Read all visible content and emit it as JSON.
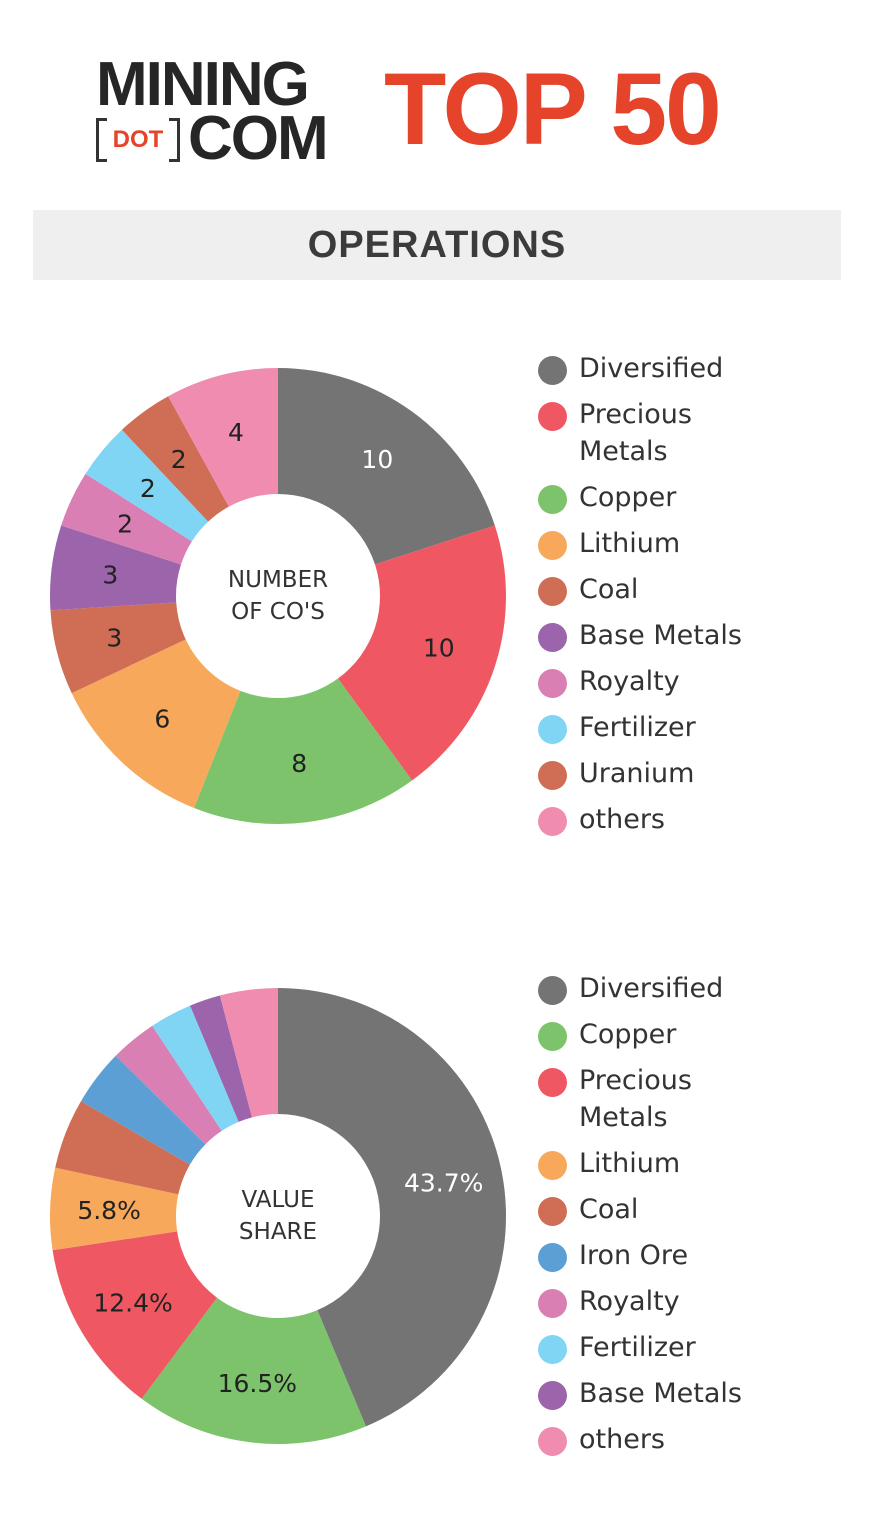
{
  "logo": {
    "line1": "MINING",
    "dot": "DOT",
    "line2": "COM"
  },
  "header": {
    "title": "TOP 50",
    "section": "OPERATIONS"
  },
  "chart_data": [
    {
      "type": "pie",
      "center_label": [
        "NUMBER",
        "OF CO'S"
      ],
      "categories": [
        "Diversified",
        "Precious Metals",
        "Copper",
        "Lithium",
        "Coal",
        "Base Metals",
        "Royalty",
        "Fertilizer",
        "Uranium",
        "others"
      ],
      "values": [
        10,
        10,
        8,
        6,
        3,
        3,
        2,
        2,
        2,
        4
      ],
      "labels": [
        "10",
        "10",
        "8",
        "6",
        "3",
        "3",
        "2",
        "2",
        "2",
        "4"
      ],
      "colors": [
        "#747474",
        "#ef5862",
        "#7cc36b",
        "#f8a85a",
        "#cf6d55",
        "#9b64ab",
        "#d97fb3",
        "#80d5f5",
        "#cf6d55",
        "#f18cb1"
      ],
      "legend": [
        {
          "label": "Diversified",
          "color": "#747474"
        },
        {
          "label": "Precious Metals",
          "color": "#ef5862"
        },
        {
          "label": "Copper",
          "color": "#7cc36b"
        },
        {
          "label": "Lithium",
          "color": "#f8a85a"
        },
        {
          "label": "Coal",
          "color": "#cf6d55"
        },
        {
          "label": "Base Metals",
          "color": "#9b64ab"
        },
        {
          "label": "Royalty",
          "color": "#d97fb3"
        },
        {
          "label": "Fertilizer",
          "color": "#80d5f5"
        },
        {
          "label": "Uranium",
          "color": "#cf6d55"
        },
        {
          "label": "others",
          "color": "#f18cb1"
        }
      ],
      "legend_position": "right"
    },
    {
      "type": "pie",
      "center_label": [
        "VALUE",
        "SHARE"
      ],
      "categories": [
        "Diversified",
        "Copper",
        "Precious Metals",
        "Lithium",
        "Coal",
        "Iron Ore",
        "Royalty",
        "Fertilizer",
        "Base Metals",
        "others"
      ],
      "values": [
        43.7,
        16.5,
        12.4,
        5.8,
        5.0,
        4.0,
        3.3,
        3.0,
        2.2,
        4.1
      ],
      "labels": [
        "43.7%",
        "16.5%",
        "12.4%",
        "5.8%",
        "",
        "",
        "",
        "",
        "",
        ""
      ],
      "colors": [
        "#747474",
        "#7cc36b",
        "#ef5862",
        "#f8a85a",
        "#cf6d55",
        "#5b9fd4",
        "#d97fb3",
        "#80d5f5",
        "#9b64ab",
        "#f18cb1"
      ],
      "legend": [
        {
          "label": "Diversified",
          "color": "#747474"
        },
        {
          "label": "Copper",
          "color": "#7cc36b"
        },
        {
          "label": "Precious Metals",
          "color": "#ef5862"
        },
        {
          "label": "Lithium",
          "color": "#f8a85a"
        },
        {
          "label": "Coal",
          "color": "#cf6d55"
        },
        {
          "label": "Iron Ore",
          "color": "#5b9fd4"
        },
        {
          "label": "Royalty",
          "color": "#d97fb3"
        },
        {
          "label": "Fertilizer",
          "color": "#80d5f5"
        },
        {
          "label": "Base Metals",
          "color": "#9b64ab"
        },
        {
          "label": "others",
          "color": "#f18cb1"
        }
      ],
      "legend_position": "right"
    }
  ]
}
